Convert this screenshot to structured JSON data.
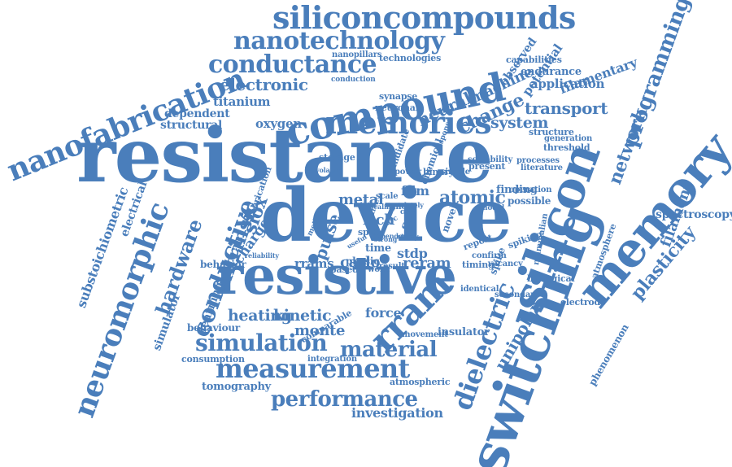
{
  "colors": {
    "word": "#4a7ebb",
    "background": "#ffffff"
  },
  "words": [
    "siliconcompounds",
    "nanotechnology",
    "conductance",
    "compound",
    "electronic",
    "nanofabrication",
    "titanium",
    "dependent",
    "structural",
    "memories",
    "oxygen",
    "resistance",
    "device",
    "silicon",
    "switching",
    "resistive",
    "memory",
    "neuromorphic",
    "conductive",
    "hardware",
    "intrinsic",
    "siox",
    "simulation",
    "measurement",
    "performance",
    "investigation",
    "heating",
    "kinetic",
    "monte",
    "material",
    "rram",
    "dielectric",
    "programming",
    "network",
    "plasticity",
    "filament",
    "spectroscopy",
    "electrode",
    "phenomenon",
    "unipolar",
    "insulator",
    "tomography",
    "consumption",
    "behaviour",
    "behavior",
    "rrams",
    "reram",
    "carlo",
    "pulse",
    "metal",
    "rich",
    "atomic",
    "system",
    "transport",
    "change",
    "neural",
    "machine",
    "potential",
    "filamentary",
    "endurance",
    "capabilities",
    "observed",
    "application",
    "technologies",
    "nanopillars",
    "conduction",
    "synapse",
    "neuronal",
    "learning",
    "simulator",
    "substoichiometric",
    "electrical",
    "charge",
    "force",
    "stdp",
    "spike",
    "timing",
    "spiking",
    "biological",
    "secondary",
    "identical",
    "mammalian",
    "atmosphere",
    "atmospheric",
    "integration",
    "comparable",
    "movement",
    "structure",
    "generation",
    "threshold",
    "processes",
    "literature",
    "scalability",
    "present",
    "chemical",
    "candidate",
    "storage",
    "volatile",
    "scale",
    "film",
    "finding",
    "operation",
    "possible",
    "binary",
    "simple",
    "power",
    "cell",
    "physic",
    "based",
    "work",
    "result",
    "time",
    "self",
    "novel",
    "report",
    "confirm",
    "vacancy",
    "useful",
    "method",
    "model",
    "more",
    "free",
    "arc",
    "fabrication",
    "reliability",
    "spin",
    "study",
    "strong",
    "scaling",
    "lately",
    "response",
    "dependence"
  ]
}
